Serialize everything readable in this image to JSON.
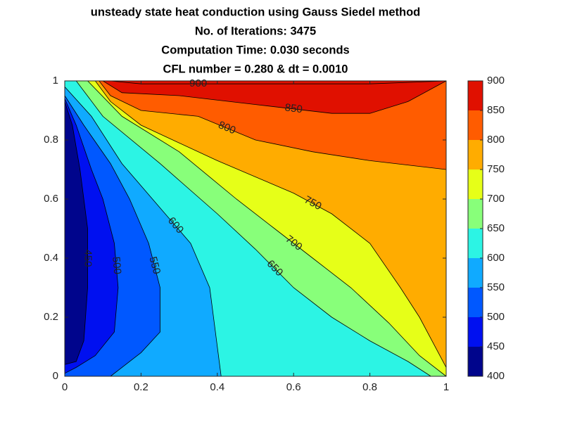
{
  "chart_data": {
    "type": "contourf",
    "title": [
      "unsteady state heat conduction using Gauss Siedel method",
      "No. of Iterations: 3475",
      "Computation Time: 0.030 seconds",
      "CFL number = 0.280 & dt = 0.0010"
    ],
    "xlim": [
      0,
      1
    ],
    "ylim": [
      0,
      1
    ],
    "xticks": [
      0,
      0.2,
      0.4,
      0.6,
      0.8,
      1
    ],
    "yticks": [
      0,
      0.2,
      0.4,
      0.6,
      0.8,
      1
    ],
    "clim": [
      400,
      900
    ],
    "cticks": [
      400,
      450,
      500,
      550,
      600,
      650,
      700,
      750,
      800,
      850,
      900
    ],
    "colors": [
      "#00058c",
      "#0010f0",
      "#0058ff",
      "#10aaff",
      "#2cf4e4",
      "#88ff7a",
      "#e6ff18",
      "#ffac00",
      "#ff5c00",
      "#e01000"
    ],
    "contours": [
      {
        "level": 450,
        "x": [
          0,
          0.02,
          0.04,
          0.06,
          0.06,
          0.05,
          0.03,
          0
        ],
        "y": [
          0.93,
          0.85,
          0.7,
          0.5,
          0.3,
          0.12,
          0.05,
          0.04
        ]
      },
      {
        "level": 500,
        "x": [
          0,
          0.03,
          0.07,
          0.1,
          0.13,
          0.14,
          0.13,
          0.08,
          0.03,
          0
        ],
        "y": [
          0.94,
          0.85,
          0.7,
          0.6,
          0.45,
          0.3,
          0.15,
          0.07,
          0.03,
          0.01
        ]
      },
      {
        "level": 550,
        "x": [
          0,
          0.05,
          0.12,
          0.17,
          0.22,
          0.25,
          0.25,
          0.2,
          0.15,
          0.12
        ],
        "y": [
          0.95,
          0.85,
          0.72,
          0.6,
          0.45,
          0.3,
          0.15,
          0.08,
          0.03,
          0
        ]
      },
      {
        "level": 600,
        "x": [
          0,
          0.07,
          0.15,
          0.25,
          0.33,
          0.38,
          0.4,
          0.41
        ],
        "y": [
          0.98,
          0.88,
          0.72,
          0.57,
          0.45,
          0.3,
          0.1,
          0
        ]
      },
      {
        "level": 650,
        "x": [
          0.03,
          0.1,
          0.25,
          0.4,
          0.5,
          0.6,
          0.7,
          0.8,
          0.9,
          0.96
        ],
        "y": [
          1,
          0.88,
          0.72,
          0.55,
          0.43,
          0.3,
          0.2,
          0.12,
          0.05,
          0
        ]
      },
      {
        "level": 700,
        "x": [
          0.06,
          0.15,
          0.3,
          0.45,
          0.55,
          0.65,
          0.75,
          0.85,
          0.93,
          1
        ],
        "y": [
          1,
          0.88,
          0.76,
          0.6,
          0.5,
          0.4,
          0.3,
          0.18,
          0.07,
          0
        ]
      },
      {
        "level": 750,
        "x": [
          0.08,
          0.12,
          0.2,
          0.4,
          0.6,
          0.7,
          0.8,
          0.88,
          0.93,
          1
        ],
        "y": [
          1,
          0.93,
          0.85,
          0.73,
          0.62,
          0.55,
          0.45,
          0.3,
          0.2,
          0.03
        ]
      },
      {
        "level": 800,
        "x": [
          0.09,
          0.12,
          0.2,
          0.35,
          0.5,
          0.65,
          0.8,
          1
        ],
        "y": [
          1,
          0.95,
          0.9,
          0.88,
          0.8,
          0.76,
          0.73,
          0.7
        ]
      },
      {
        "level": 850,
        "x": [
          0.1,
          0.15,
          0.3,
          0.5,
          0.7,
          0.8,
          0.9,
          1
        ],
        "y": [
          1,
          0.96,
          0.95,
          0.92,
          0.89,
          0.89,
          0.93,
          1
        ]
      },
      {
        "level": 900,
        "x": [
          0.12,
          0.2,
          0.5,
          0.8,
          1
        ],
        "y": [
          1,
          0.99,
          0.99,
          0.99,
          1
        ]
      }
    ]
  }
}
